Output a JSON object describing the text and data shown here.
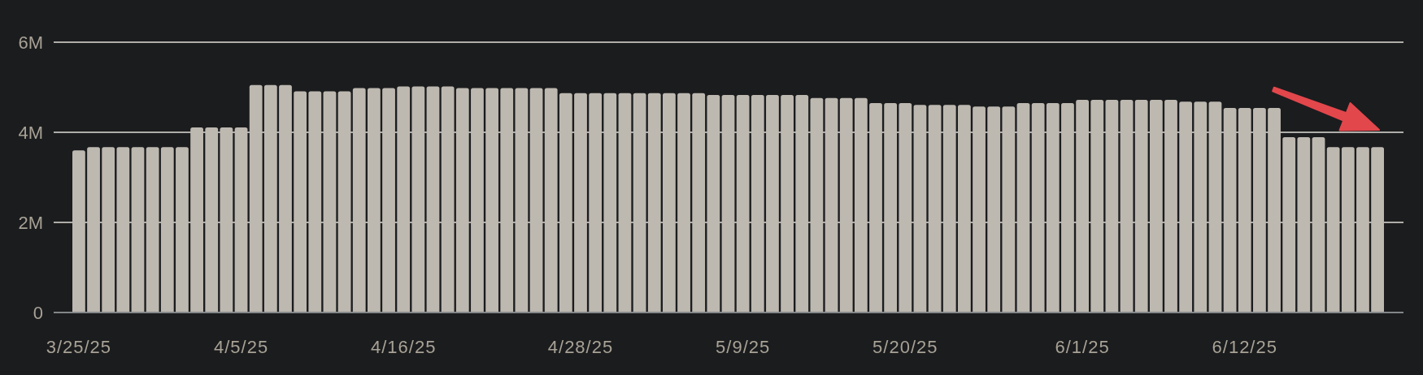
{
  "chart_data": {
    "type": "bar",
    "categories": [
      "3/25/25",
      null,
      null,
      null,
      null,
      null,
      null,
      null,
      null,
      null,
      null,
      "4/5/25",
      null,
      null,
      null,
      null,
      null,
      null,
      null,
      null,
      null,
      null,
      "4/16/25",
      null,
      null,
      null,
      null,
      null,
      null,
      null,
      null,
      null,
      null,
      null,
      "4/28/25",
      null,
      null,
      null,
      null,
      null,
      null,
      null,
      null,
      null,
      null,
      "5/9/25",
      null,
      null,
      null,
      null,
      null,
      null,
      null,
      null,
      null,
      null,
      "5/20/25",
      null,
      null,
      null,
      null,
      null,
      null,
      null,
      null,
      null,
      null,
      null,
      "6/1/25",
      null,
      null,
      null,
      null,
      null,
      null,
      null,
      null,
      null,
      null,
      "6/12/25",
      null,
      null,
      null,
      null,
      null,
      null,
      null,
      null,
      null
    ],
    "values": [
      3600000,
      3670000,
      3670000,
      3670000,
      3670000,
      3670000,
      3670000,
      3670000,
      4110000,
      4110000,
      4110000,
      4110000,
      5050000,
      5050000,
      5050000,
      4910000,
      4910000,
      4910000,
      4910000,
      4980000,
      4980000,
      4980000,
      5020000,
      5020000,
      5020000,
      5020000,
      4980000,
      4980000,
      4980000,
      4980000,
      4980000,
      4980000,
      4980000,
      4870000,
      4870000,
      4870000,
      4870000,
      4870000,
      4870000,
      4870000,
      4870000,
      4870000,
      4870000,
      4830000,
      4830000,
      4830000,
      4830000,
      4830000,
      4830000,
      4830000,
      4760000,
      4760000,
      4760000,
      4760000,
      4650000,
      4650000,
      4650000,
      4610000,
      4610000,
      4610000,
      4610000,
      4570000,
      4570000,
      4570000,
      4650000,
      4650000,
      4650000,
      4650000,
      4720000,
      4720000,
      4720000,
      4720000,
      4720000,
      4720000,
      4720000,
      4680000,
      4680000,
      4680000,
      4540000,
      4540000,
      4540000,
      4540000,
      3890000,
      3890000,
      3890000,
      3670000,
      3670000,
      3670000,
      3670000
    ],
    "color": "#bdb8b0",
    "ylim": [
      0,
      6000000
    ],
    "yticks": [
      0,
      {
        "value": 2000000,
        "label": "2M"
      },
      {
        "value": 4000000,
        "label": "4M"
      },
      {
        "value": 6000000,
        "label": "6M"
      }
    ],
    "grid": "y"
  }
}
